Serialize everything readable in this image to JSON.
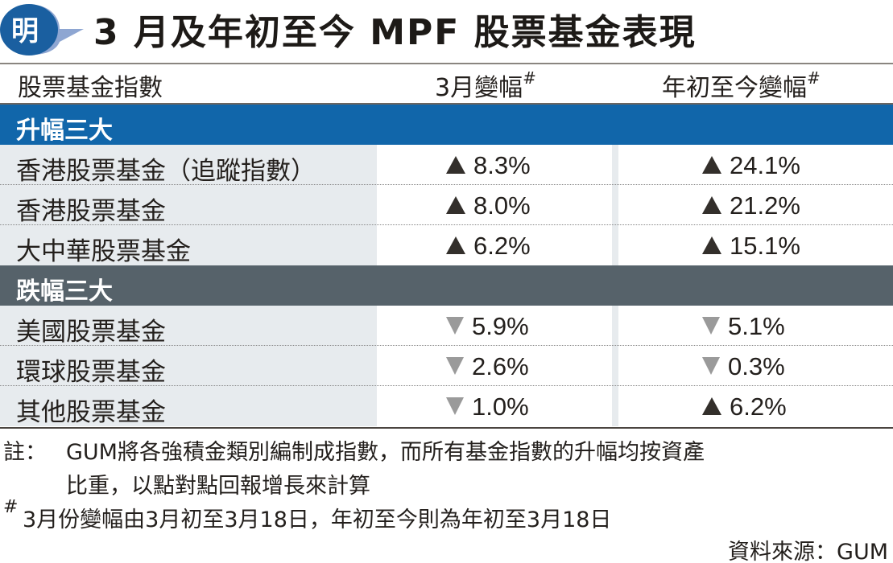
{
  "logo": {
    "text": "明",
    "colors": {
      "bubble": "#1a5fa0",
      "tail": "#8ea6d2"
    }
  },
  "title": "3 月及年初至今 MPF 股票基金表現",
  "table": {
    "headers": [
      "股票基金指數",
      "3月變幅",
      "年初至今變幅"
    ],
    "header_mark": "#",
    "sections": [
      {
        "label": "升幅三大",
        "color": "#1166aa",
        "rows": [
          {
            "name": "香港股票基金（追蹤指數）",
            "march": {
              "dir": "up",
              "value": "8.3%"
            },
            "ytd": {
              "dir": "up",
              "value": "24.1%"
            }
          },
          {
            "name": "香港股票基金",
            "march": {
              "dir": "up",
              "value": "8.0%"
            },
            "ytd": {
              "dir": "up",
              "value": "21.2%"
            }
          },
          {
            "name": "大中華股票基金",
            "march": {
              "dir": "up",
              "value": "6.2%"
            },
            "ytd": {
              "dir": "up",
              "value": "15.1%"
            }
          }
        ]
      },
      {
        "label": "跌幅三大",
        "color": "#56626a",
        "rows": [
          {
            "name": "美國股票基金",
            "march": {
              "dir": "down",
              "value": "5.9%"
            },
            "ytd": {
              "dir": "down",
              "value": "5.1%"
            }
          },
          {
            "name": "環球股票基金",
            "march": {
              "dir": "down",
              "value": "2.6%"
            },
            "ytd": {
              "dir": "down",
              "value": "0.3%"
            }
          },
          {
            "name": "其他股票基金",
            "march": {
              "dir": "down",
              "value": "1.0%"
            },
            "ytd": {
              "dir": "up",
              "value": "6.2%"
            }
          }
        ]
      }
    ]
  },
  "notes": {
    "note_label": "註：",
    "note_line1": "GUM將各強積金類別編制成指數，而所有基金指數的升幅均按資產",
    "note_line2": "比重，以點對點回報增長來計算",
    "hash_mark": "#",
    "hash_note": "3月份變幅由3月初至3月18日，年初至今則為年初至3月18日",
    "source": "資料來源：GUM"
  }
}
